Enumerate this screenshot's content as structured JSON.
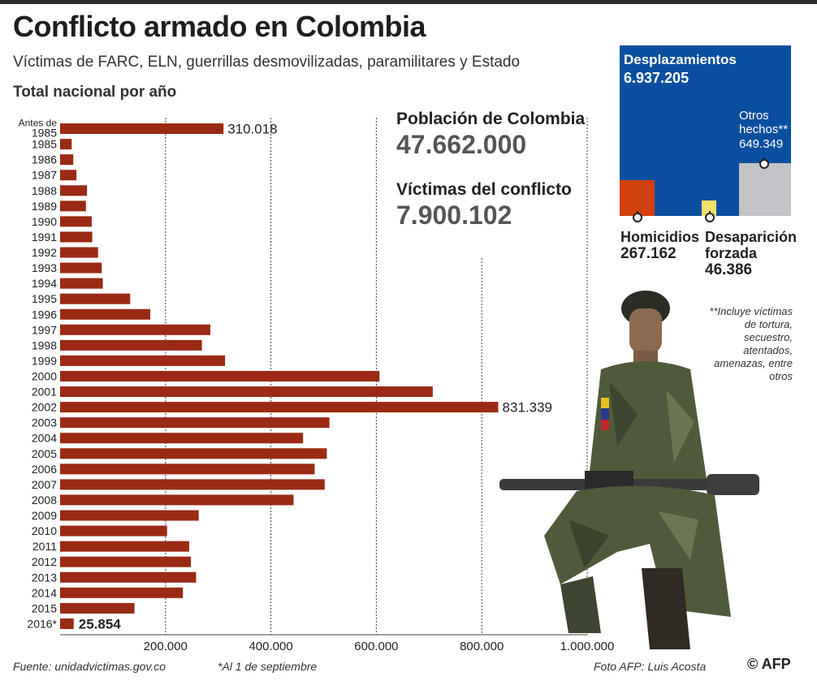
{
  "title": "Conflicto armado en Colombia",
  "subtitle": "Víctimas de FARC, ELN, guerrillas desmovilizadas, paramilitares y Estado",
  "chart_title": "Total nacional por año",
  "stats": {
    "poblacion_label": "Población de Colombia",
    "poblacion_value": "47.662.000",
    "victimas_label": "Víctimas del conflicto",
    "victimas_value": "7.900.102"
  },
  "treemap": {
    "desplazamientos_label": "Desplazamientos",
    "desplazamientos_value": "6.937.205",
    "otros_label": "Otros hechos**",
    "otros_value": "649.349",
    "homicidios_label": "Homicidios",
    "homicidios_value": "267.162",
    "desaparicion_label": "Desaparición forzada",
    "desaparicion_value": "46.386"
  },
  "footnote": "**Incluye víctimas de tortura, secuestro, atentados, amenazas, entre otros",
  "footer": {
    "source": "Fuente: unidadvictimas.gov.co",
    "note": "*Al 1 de septiembre",
    "photo": "Foto AFP: Luis Acosta",
    "agency": "© AFP"
  },
  "colors": {
    "bar": "#9b2a14",
    "treemap_blue": "#0a4f9f",
    "homicidios": "#d2400d",
    "desaparicion": "#f2df6c",
    "otros": "#c2c4c8"
  },
  "chart_data": {
    "type": "bar",
    "orientation": "horizontal",
    "categories": [
      "Antes de 1985",
      "1985",
      "1986",
      "1987",
      "1988",
      "1989",
      "1990",
      "1991",
      "1992",
      "1993",
      "1994",
      "1995",
      "1996",
      "1997",
      "1998",
      "1999",
      "2000",
      "2001",
      "2002",
      "2003",
      "2004",
      "2005",
      "2006",
      "2007",
      "2008",
      "2009",
      "2010",
      "2011",
      "2012",
      "2013",
      "2014",
      "2015",
      "2016*"
    ],
    "values": [
      310018,
      22000,
      25000,
      31000,
      51000,
      49000,
      60000,
      61000,
      72000,
      79000,
      81000,
      133000,
      171000,
      285000,
      269000,
      313000,
      606000,
      707000,
      831339,
      511000,
      461000,
      506000,
      483000,
      502000,
      443000,
      263000,
      203000,
      245000,
      248000,
      258000,
      233000,
      141000,
      25854
    ],
    "value_labels": {
      "Antes de 1985": "310.018",
      "2002": "831.339",
      "2016*": "25.854"
    },
    "xlim": [
      0,
      1000000
    ],
    "xticks": [
      200000,
      400000,
      600000,
      800000,
      1000000
    ],
    "xtick_labels": [
      "200.000",
      "400.000",
      "600.000",
      "800.000",
      "1.000.000"
    ],
    "grid": "vertical dotted"
  }
}
